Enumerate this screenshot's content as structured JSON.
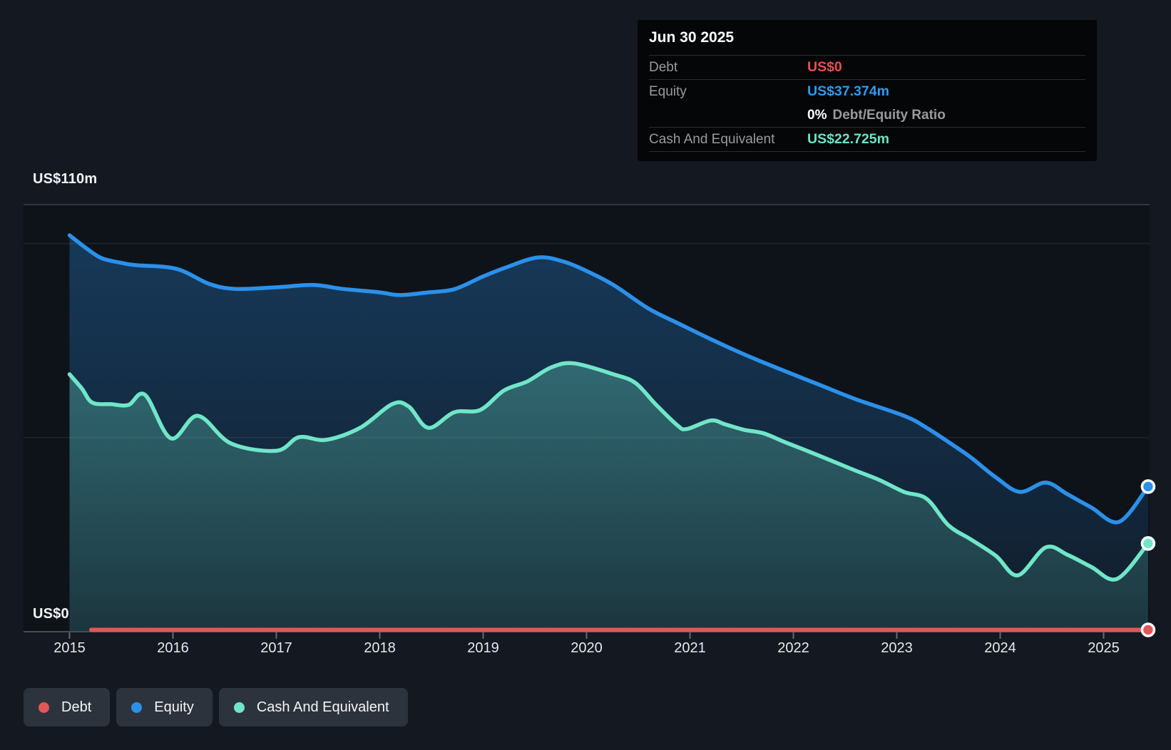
{
  "tooltip": {
    "date": "Jun 30 2025",
    "rows": [
      {
        "label": "Debt",
        "value": "US$0",
        "color": "#e8514e"
      },
      {
        "label": "Equity",
        "value": "US$37.374m",
        "color": "#2e9bf0",
        "ratio_bold": "0%",
        "ratio_text": "Debt/Equity Ratio"
      },
      {
        "label": "Cash And Equivalent",
        "value": "US$22.725m",
        "color": "#6ce4c6"
      }
    ]
  },
  "axis": {
    "y_max_label": "US$110m",
    "y_zero_label": "US$0",
    "years": [
      "2015",
      "2016",
      "2017",
      "2018",
      "2019",
      "2020",
      "2021",
      "2022",
      "2023",
      "2024",
      "2025"
    ]
  },
  "legend": {
    "items": [
      {
        "label": "Debt",
        "color": "#e25757"
      },
      {
        "label": "Equity",
        "color": "#2b90ea"
      },
      {
        "label": "Cash And Equivalent",
        "color": "#70e6c8"
      }
    ]
  },
  "colors": {
    "page_bg": "#141821",
    "plot_bg": "#0e131a",
    "grid_major": "rgba(255,255,255,0.20)",
    "grid_minor": "rgba(255,255,255,0.07)",
    "axis_line": "#454c56",
    "tick": "rgba(255,255,255,0.35)",
    "marker_ring": "#ffffff",
    "tooltip_bg": "#040608",
    "legend_pill_bg": "#2d333c"
  },
  "chart_data": {
    "type": "area",
    "title": "",
    "xlabel": "",
    "ylabel": "US$ millions",
    "x_unit": "decimal year",
    "xlim": [
      2014.97,
      2025.47
    ],
    "ylim": [
      0,
      110
    ],
    "gridlines_y": [
      0,
      50,
      100,
      110
    ],
    "grid": true,
    "legend_position": "bottom-left",
    "end_markers": true,
    "series": [
      {
        "name": "Debt",
        "color": "#e25757",
        "points": [
          [
            2015.21,
            0
          ],
          [
            2025.43,
            0
          ]
        ]
      },
      {
        "name": "Equity",
        "color": "#2b90ea",
        "points": [
          [
            2015.0,
            102.1
          ],
          [
            2015.16,
            98.8
          ],
          [
            2015.31,
            96.2
          ],
          [
            2015.5,
            95.0
          ],
          [
            2015.64,
            94.4
          ],
          [
            2016.03,
            93.5
          ],
          [
            2016.35,
            89.6
          ],
          [
            2016.6,
            88.3
          ],
          [
            2017.0,
            88.7
          ],
          [
            2017.36,
            89.3
          ],
          [
            2017.64,
            88.3
          ],
          [
            2018.0,
            87.4
          ],
          [
            2018.19,
            86.7
          ],
          [
            2018.47,
            87.4
          ],
          [
            2018.72,
            88.2
          ],
          [
            2019.0,
            91.5
          ],
          [
            2019.22,
            93.8
          ],
          [
            2019.53,
            96.4
          ],
          [
            2019.78,
            95.3
          ],
          [
            2020.0,
            92.9
          ],
          [
            2020.26,
            89.3
          ],
          [
            2020.6,
            83.2
          ],
          [
            2020.88,
            79.5
          ],
          [
            2021.22,
            75.1
          ],
          [
            2021.57,
            70.9
          ],
          [
            2021.91,
            67.2
          ],
          [
            2022.26,
            63.5
          ],
          [
            2022.6,
            59.9
          ],
          [
            2023.07,
            55.6
          ],
          [
            2023.29,
            52.5
          ],
          [
            2023.57,
            47.6
          ],
          [
            2023.72,
            44.8
          ],
          [
            2023.96,
            39.7
          ],
          [
            2024.19,
            36.0
          ],
          [
            2024.44,
            38.4
          ],
          [
            2024.65,
            35.4
          ],
          [
            2024.88,
            32.0
          ],
          [
            2025.15,
            28.3
          ],
          [
            2025.43,
            37.374
          ]
        ]
      },
      {
        "name": "Cash And Equivalent",
        "color": "#70e6c8",
        "points": [
          [
            2015.0,
            66.3
          ],
          [
            2015.12,
            62.6
          ],
          [
            2015.22,
            59.0
          ],
          [
            2015.4,
            58.6
          ],
          [
            2015.57,
            58.4
          ],
          [
            2015.73,
            61.0
          ],
          [
            2015.98,
            49.8
          ],
          [
            2016.24,
            55.6
          ],
          [
            2016.56,
            48.5
          ],
          [
            2017.0,
            46.6
          ],
          [
            2017.22,
            50.1
          ],
          [
            2017.48,
            49.4
          ],
          [
            2017.81,
            52.5
          ],
          [
            2018.12,
            58.6
          ],
          [
            2018.28,
            58.0
          ],
          [
            2018.47,
            52.5
          ],
          [
            2018.72,
            56.5
          ],
          [
            2018.97,
            57.1
          ],
          [
            2019.2,
            62.1
          ],
          [
            2019.43,
            64.5
          ],
          [
            2019.66,
            68.1
          ],
          [
            2019.88,
            69.1
          ],
          [
            2020.26,
            66.3
          ],
          [
            2020.47,
            64.1
          ],
          [
            2020.67,
            58.5
          ],
          [
            2020.88,
            53.1
          ],
          [
            2020.97,
            52.2
          ],
          [
            2021.2,
            54.4
          ],
          [
            2021.34,
            53.4
          ],
          [
            2021.52,
            52.0
          ],
          [
            2021.71,
            51.1
          ],
          [
            2021.91,
            48.9
          ],
          [
            2022.14,
            46.5
          ],
          [
            2022.38,
            43.9
          ],
          [
            2022.6,
            41.5
          ],
          [
            2022.83,
            39.1
          ],
          [
            2023.07,
            36.0
          ],
          [
            2023.29,
            34.2
          ],
          [
            2023.5,
            27.4
          ],
          [
            2023.72,
            23.7
          ],
          [
            2023.96,
            19.5
          ],
          [
            2024.17,
            14.5
          ],
          [
            2024.44,
            21.7
          ],
          [
            2024.65,
            19.8
          ],
          [
            2024.88,
            16.7
          ],
          [
            2025.13,
            13.6
          ],
          [
            2025.43,
            22.725
          ]
        ]
      }
    ]
  }
}
